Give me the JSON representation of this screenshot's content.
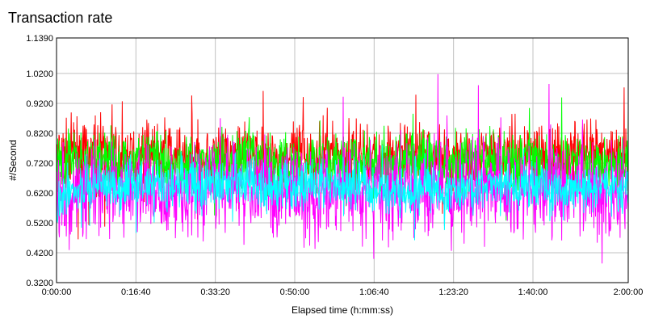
{
  "chart_data": {
    "type": "line",
    "title": "Transaction rate",
    "xlabel": "Elapsed time (h:mm:ss)",
    "ylabel": "#/Second",
    "xlim": [
      0,
      7200
    ],
    "ylim": [
      0.32,
      1.139
    ],
    "y_ticks": [
      "0.3200",
      "0.4200",
      "0.5200",
      "0.6200",
      "0.7200",
      "0.8200",
      "0.9200",
      "1.0200",
      "1.1390"
    ],
    "y_tick_values": [
      0.32,
      0.42,
      0.52,
      0.62,
      0.72,
      0.82,
      0.92,
      1.02,
      1.139
    ],
    "x_ticks": [
      "0:00:00",
      "0:16:40",
      "0:33:20",
      "0:50:00",
      "1:06:40",
      "1:23:20",
      "1:40:00",
      "2:00:00"
    ],
    "x_tick_values": [
      0,
      1000,
      2000,
      3000,
      4000,
      5000,
      6000,
      7200
    ],
    "grid": true,
    "legend": "none",
    "series": [
      {
        "color": "#ff0000",
        "x": [
          0,
          200,
          400,
          600,
          800,
          1000,
          1200,
          1400,
          1600,
          1800,
          2000,
          2200,
          2400,
          2600,
          2800,
          3000,
          3200,
          3400,
          3600,
          3800,
          4000,
          4200,
          4400,
          4600,
          4800,
          5000,
          5200,
          5400,
          5600,
          5800,
          6000,
          6200,
          6400,
          6600,
          6800,
          7000,
          7200
        ],
        "values": [
          0.73,
          0.76,
          0.74,
          0.75,
          0.73,
          0.74,
          0.76,
          0.75,
          0.73,
          0.74,
          0.75,
          0.74,
          0.76,
          0.74,
          0.73,
          0.75,
          0.74,
          0.76,
          0.74,
          0.75,
          0.74,
          0.73,
          0.75,
          0.76,
          0.74,
          0.73,
          0.75,
          0.74,
          0.75,
          0.74,
          0.76,
          0.74,
          0.73,
          0.75,
          0.74,
          0.75,
          0.74
        ]
      },
      {
        "color": "#00ff00",
        "x": [
          0,
          200,
          400,
          600,
          800,
          1000,
          1200,
          1400,
          1600,
          1800,
          2000,
          2200,
          2400,
          2600,
          2800,
          3000,
          3200,
          3400,
          3600,
          3800,
          4000,
          4200,
          4400,
          4600,
          4800,
          5000,
          5200,
          5400,
          5600,
          5800,
          6000,
          6200,
          6400,
          6600,
          6800,
          7000,
          7200
        ],
        "values": [
          0.71,
          0.73,
          0.72,
          0.74,
          0.71,
          0.72,
          0.74,
          0.73,
          0.71,
          0.72,
          0.73,
          0.72,
          0.74,
          0.72,
          0.71,
          0.73,
          0.72,
          0.74,
          0.72,
          0.73,
          0.72,
          0.71,
          0.73,
          0.74,
          0.72,
          0.71,
          0.73,
          0.72,
          0.73,
          0.72,
          0.74,
          0.72,
          0.71,
          0.73,
          0.72,
          0.73,
          0.72
        ]
      },
      {
        "color": "#ff00ff",
        "x": [
          0,
          200,
          400,
          600,
          800,
          1000,
          1200,
          1400,
          1600,
          1800,
          2000,
          2200,
          2400,
          2600,
          2800,
          3000,
          3200,
          3400,
          3600,
          3800,
          4000,
          4200,
          4400,
          4600,
          4800,
          5000,
          5200,
          5400,
          5600,
          5800,
          6000,
          6200,
          6400,
          6600,
          6800,
          7000,
          7200
        ],
        "values": [
          0.61,
          0.63,
          0.62,
          0.64,
          0.63,
          0.62,
          0.64,
          0.63,
          0.62,
          0.63,
          0.64,
          0.62,
          0.63,
          0.64,
          0.62,
          0.63,
          0.62,
          0.64,
          0.63,
          0.62,
          0.63,
          0.62,
          0.63,
          0.64,
          0.62,
          0.63,
          0.62,
          0.64,
          0.63,
          0.62,
          0.64,
          0.63,
          0.62,
          0.63,
          0.64,
          0.62,
          0.63
        ]
      },
      {
        "color": "#00ffff",
        "x": [
          0,
          200,
          400,
          600,
          800,
          1000,
          1200,
          1400,
          1600,
          1800,
          2000,
          2200,
          2400,
          2600,
          2800,
          3000,
          3200,
          3400,
          3600,
          3800,
          4000,
          4200,
          4400,
          4600,
          4800,
          5000,
          5200,
          5400,
          5600,
          5800,
          6000,
          6200,
          6400,
          6600,
          6800,
          7000,
          7200
        ],
        "values": [
          0.59,
          0.62,
          0.64,
          0.65,
          0.64,
          0.66,
          0.65,
          0.64,
          0.66,
          0.65,
          0.64,
          0.65,
          0.66,
          0.64,
          0.65,
          0.64,
          0.66,
          0.65,
          0.64,
          0.65,
          0.64,
          0.63,
          0.64,
          0.65,
          0.63,
          0.62,
          0.64,
          0.65,
          0.64,
          0.63,
          0.65,
          0.64,
          0.63,
          0.64,
          0.65,
          0.64,
          0.64
        ]
      }
    ]
  }
}
